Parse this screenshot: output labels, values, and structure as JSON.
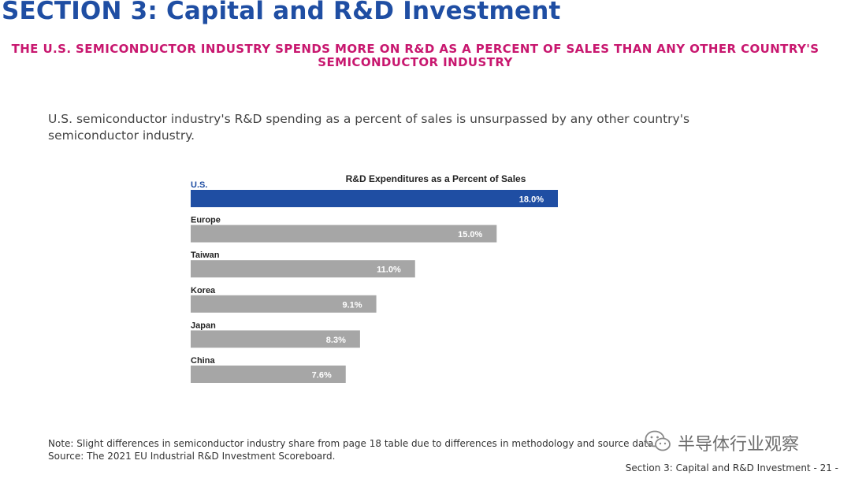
{
  "header": {
    "section_title": "SECTION 3: Capital and R&D Investment",
    "headline_line1": "THE U.S. SEMICONDUCTOR INDUSTRY SPENDS MORE ON R&D AS A PERCENT OF SALES THAN ANY OTHER COUNTRY'S",
    "headline_line2": "SEMICONDUCTOR INDUSTRY"
  },
  "intro_text": "U.S. semiconductor industry's R&D spending as a percent of sales is unsurpassed by any other country's semiconductor industry.",
  "chart_data": {
    "type": "bar",
    "orientation": "horizontal",
    "title": "R&D Expenditures as a Percent of Sales",
    "categories": [
      "U.S.",
      "Europe",
      "Taiwan",
      "Korea",
      "Japan",
      "China"
    ],
    "values": [
      18.0,
      15.0,
      11.0,
      9.1,
      8.3,
      7.6
    ],
    "value_labels": [
      "18.0%",
      "15.0%",
      "11.0%",
      "9.1%",
      "8.3%",
      "7.6%"
    ],
    "unit": "%",
    "xlim": [
      0,
      18.0
    ],
    "grid": false,
    "legend": "none",
    "colors": {
      "highlight": "#1f4ea3",
      "default": "#a6a6a6",
      "highlight_label": "#1f4ea3",
      "default_label": "#222222",
      "value_text": "#ffffff"
    }
  },
  "notes": {
    "note": "Note: Slight differences in semiconductor industry share from page 18 table due to differences in methodology and source data.",
    "source": "Source: The 2021 EU Industrial R&D Investment Scoreboard."
  },
  "watermark": {
    "icon": "wechat-icon",
    "text": "半导体行业观察"
  },
  "footer": {
    "text": "Section 3: Capital and R&D Investment  - 21 -"
  }
}
